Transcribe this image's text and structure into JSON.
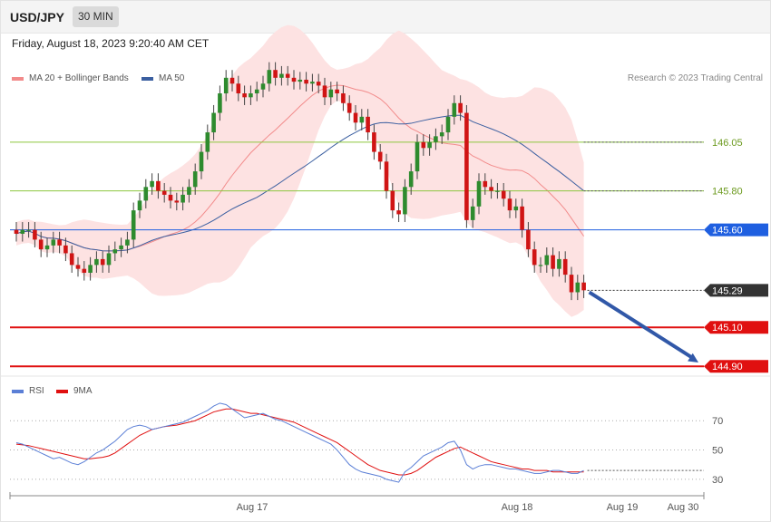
{
  "header": {
    "symbol": "USD/JPY",
    "timeframe": "30 MIN"
  },
  "datetime": "Friday, August 18, 2023 9:20:40 AM CET",
  "legend_main": [
    {
      "label": "MA 20 + Bollinger Bands",
      "color": "#f28b8b"
    },
    {
      "label": "MA 50",
      "color": "#3b5fa0"
    }
  ],
  "credit": "Research © 2023 Trading Central",
  "legend_rsi": [
    {
      "label": "RSI",
      "color": "#5b7fd6"
    },
    {
      "label": "9MA",
      "color": "#e01010"
    }
  ],
  "chart_data": [
    {
      "type": "candlestick",
      "ylim": [
        144.85,
        146.5
      ],
      "levels": [
        {
          "value": 146.05,
          "label": "146.05",
          "style": "resistance",
          "color": "#8dc63f"
        },
        {
          "value": 145.8,
          "label": "145.80",
          "style": "resistance",
          "color": "#8dc63f"
        },
        {
          "value": 145.6,
          "label": "145.60",
          "style": "pivot",
          "color": "#1f5fe0"
        },
        {
          "value": 145.29,
          "label": "145.29",
          "style": "last",
          "color": "#333333"
        },
        {
          "value": 145.1,
          "label": "145.10",
          "style": "support",
          "color": "#e01010"
        },
        {
          "value": 144.9,
          "label": "144.90",
          "style": "support",
          "color": "#e01010"
        }
      ],
      "arrow": {
        "from": 145.28,
        "to": 144.92
      },
      "closes": [
        145.58,
        145.6,
        145.6,
        145.55,
        145.5,
        145.52,
        145.55,
        145.52,
        145.48,
        145.42,
        145.4,
        145.38,
        145.42,
        145.45,
        145.42,
        145.48,
        145.5,
        145.52,
        145.55,
        145.7,
        145.75,
        145.82,
        145.85,
        145.8,
        145.78,
        145.75,
        145.74,
        145.78,
        145.82,
        145.9,
        146.0,
        146.1,
        146.2,
        146.3,
        146.38,
        146.35,
        146.3,
        146.28,
        146.3,
        146.32,
        146.35,
        146.42,
        146.38,
        146.4,
        146.38,
        146.36,
        146.37,
        146.35,
        146.36,
        146.34,
        146.28,
        146.32,
        146.3,
        146.25,
        146.2,
        146.15,
        146.18,
        146.1,
        146.0,
        145.95,
        145.8,
        145.7,
        145.68,
        145.82,
        145.9,
        146.05,
        146.02,
        146.05,
        146.08,
        146.1,
        146.18,
        146.25,
        146.2,
        145.65,
        145.72,
        145.85,
        145.82,
        145.8,
        145.8,
        145.76,
        145.7,
        145.72,
        145.6,
        145.5,
        145.42,
        145.42,
        145.47,
        145.4,
        145.45,
        145.37,
        145.28,
        145.33,
        145.29
      ],
      "x_ticks": [
        "Aug 17",
        "Aug 18",
        "Aug 19",
        "Aug 30"
      ]
    },
    {
      "type": "line",
      "ylim": [
        20,
        85
      ],
      "y_ticks": [
        70,
        50,
        30
      ],
      "series": [
        {
          "name": "RSI",
          "values": [
            55,
            54,
            52,
            50,
            48,
            46,
            44,
            45,
            43,
            41,
            40,
            42,
            45,
            48,
            50,
            53,
            56,
            60,
            64,
            66,
            67,
            66,
            64,
            65,
            66,
            67,
            68,
            69,
            71,
            73,
            75,
            77,
            80,
            82,
            81,
            78,
            75,
            72,
            73,
            74,
            75,
            73,
            71,
            70,
            68,
            66,
            64,
            62,
            60,
            58,
            56,
            54,
            50,
            45,
            40,
            37,
            35,
            34,
            33,
            32,
            30,
            29,
            28,
            35,
            38,
            42,
            46,
            48,
            50,
            52,
            55,
            56,
            50,
            40,
            37,
            39,
            40,
            40,
            39,
            38,
            37,
            37,
            36,
            35,
            34,
            34,
            35,
            36,
            36,
            35,
            34,
            34,
            36
          ]
        },
        {
          "name": "9MA",
          "values": [
            54,
            53.5,
            53,
            52,
            51,
            50,
            49,
            48,
            47,
            46,
            45,
            44,
            44,
            44.5,
            45,
            46,
            48,
            51,
            54,
            57,
            60,
            62,
            64,
            65,
            66,
            66.5,
            67,
            68,
            69,
            70,
            72,
            74,
            76,
            77,
            78,
            78,
            77,
            76,
            75,
            75,
            74,
            73,
            72,
            71,
            70,
            69,
            67,
            65,
            63,
            61,
            59,
            57,
            55,
            52,
            49,
            46,
            43,
            40,
            38,
            36,
            35,
            34,
            33,
            33,
            34,
            36,
            39,
            42,
            45,
            47,
            49,
            51,
            52,
            50,
            48,
            46,
            44,
            42,
            41,
            40,
            39,
            38,
            37,
            37,
            36,
            36,
            36,
            35,
            35,
            35,
            35,
            35,
            35
          ]
        }
      ]
    }
  ]
}
